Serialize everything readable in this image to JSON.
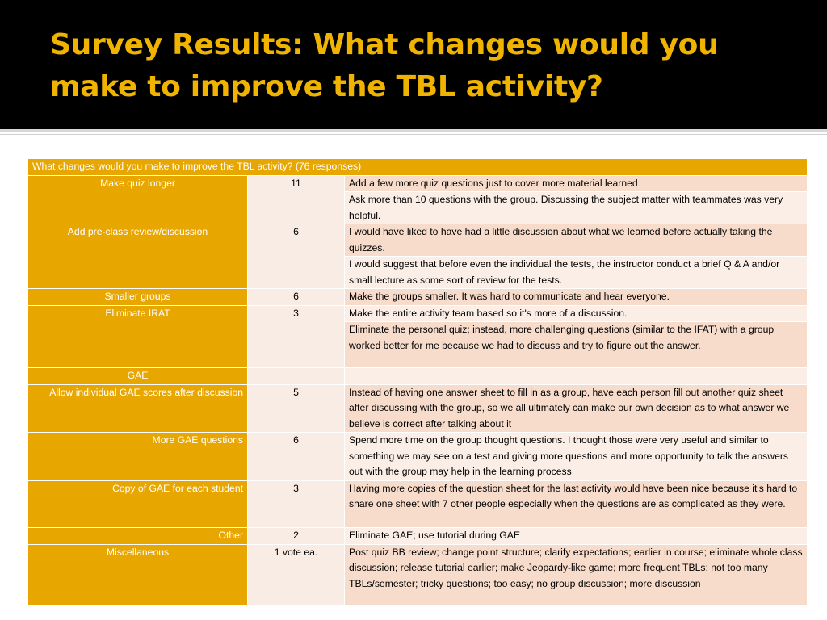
{
  "slide": {
    "title_line1": "Survey Results: What changes would you",
    "title_line2": "make to improve the TBL activity?"
  },
  "table": {
    "header": "What changes would you make to improve the TBL activity? (76 responses)",
    "rows": [
      {
        "category": "Make quiz longer",
        "count": "11",
        "responses": [
          "Add a few more quiz questions just to cover more material learned",
          "Ask more than 10 questions with the group. Discussing the subject matter with teammates was very helpful."
        ]
      },
      {
        "category": "Add pre-class review/discussion",
        "count": "6",
        "responses": [
          "I would have liked to have had a little discussion about what we learned before actually taking the quizzes.",
          "I would suggest that before even the individual the tests, the instructor conduct a brief Q & A and/or small lecture as some sort of review for the tests."
        ]
      },
      {
        "category": "Smaller groups",
        "count": "6",
        "responses": [
          "Make the groups smaller. It was hard to communicate and hear everyone."
        ]
      },
      {
        "category": "Eliminate IRAT",
        "count": "3",
        "responses": [
          "Make the entire activity team based so it's more of a discussion.",
          "Eliminate the personal quiz; instead, more challenging questions (similar to the IFAT) with a group worked better for me because we had to discuss and try to figure out the answer."
        ]
      },
      {
        "category": "GAE",
        "count": "",
        "responses": [
          ""
        ]
      },
      {
        "category": "Allow individual GAE scores after discussion",
        "count": "5",
        "responses": [
          "Instead of having one answer sheet to fill in as a group, have each person fill out another quiz sheet after discussing with the group, so we all ultimately can make our own decision as to what answer we believe is correct after talking about it"
        ]
      },
      {
        "category": "More GAE questions",
        "count": "6",
        "responses": [
          "Spend more time on the group thought questions. I thought those were very useful and similar to something we may see on a test and giving more questions and more opportunity to talk the answers out with the group may help in the learning process"
        ]
      },
      {
        "category": "Copy of GAE for each student",
        "count": "3",
        "responses": [
          "Having more copies of the question sheet for the last activity would have been nice because it's hard to share one sheet with 7 other people especially when the questions are as complicated as they were."
        ]
      },
      {
        "category": "Other",
        "count": "2",
        "responses": [
          "Eliminate GAE; use tutorial during GAE"
        ]
      },
      {
        "category": "Miscellaneous",
        "count": "1 vote ea.",
        "responses": [
          "Post quiz BB review; change point structure; clarify expectations; earlier in course; eliminate whole class discussion; release tutorial earlier; make Jeopardy-like game; more frequent TBLs; not too many TBLs/semester; tricky questions; too easy; no group discussion; more discussion"
        ]
      }
    ]
  },
  "colors": {
    "title": "#f0b400",
    "header_background": "#000000",
    "category_cell": "#e8a600",
    "count_cell": "#f9ece4",
    "response_shade_a": "#f8dccb",
    "response_shade_b": "#fbeee6"
  }
}
